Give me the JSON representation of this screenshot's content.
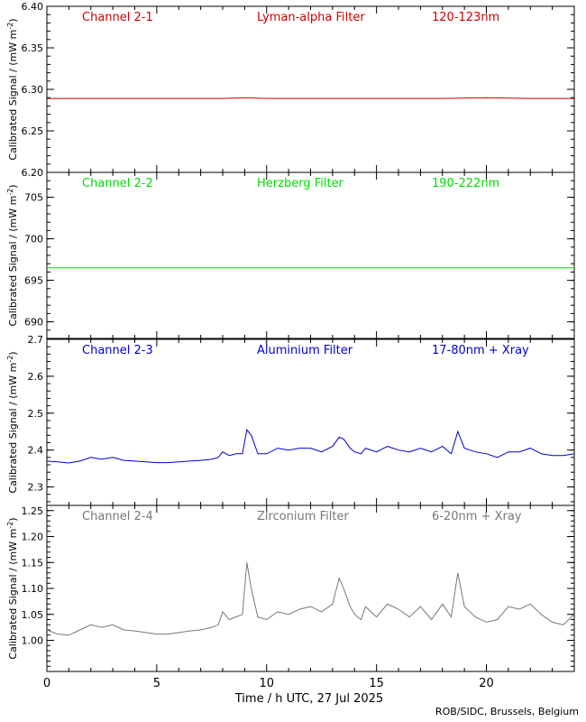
{
  "chart_data": {
    "type": "line",
    "xlabel": "Time / h UTC, 27 Jul 2025",
    "xlim": [
      0,
      24
    ],
    "xticks": [
      0,
      5,
      10,
      15,
      20
    ],
    "credit": "ROB/SIDC, Brussels, Belgium",
    "ylabel_text": "Calibrated Signal / (mW m",
    "ylabel_exp": "-2",
    "ylabel_close": ")",
    "panels": [
      {
        "channel": "Channel 2-1",
        "filter": "Lyman-alpha Filter",
        "band": "120-123nm",
        "color": "#cc0000",
        "ylim": [
          6.2,
          6.4
        ],
        "yticks": [
          "6.20",
          "6.25",
          "6.30",
          "6.35",
          "6.40"
        ],
        "series": [
          {
            "x": [
              0,
              2,
              4,
              6,
              8,
              9,
              10,
              12,
              14,
              16,
              18,
              20,
              22,
              24
            ],
            "y": [
              6.289,
              6.289,
              6.289,
              6.289,
              6.289,
              6.29,
              6.289,
              6.289,
              6.289,
              6.289,
              6.289,
              6.29,
              6.289,
              6.289
            ]
          }
        ]
      },
      {
        "channel": "Channel 2-2",
        "filter": "Herzberg Filter",
        "band": "190-222nm",
        "color": "#00dd00",
        "ylim": [
          688,
          708
        ],
        "yticks": [
          "690",
          "695",
          "700",
          "705"
        ],
        "series": [
          {
            "x": [
              0,
              2,
              4,
              6,
              8,
              10,
              12,
              14,
              16,
              18,
              20,
              22,
              24
            ],
            "y": [
              696.5,
              696.5,
              696.5,
              696.5,
              696.5,
              696.5,
              696.5,
              696.5,
              696.5,
              696.5,
              696.5,
              696.5,
              696.5
            ]
          }
        ]
      },
      {
        "channel": "Channel 2-3",
        "filter": "Aluminium Filter",
        "band": "17-80nm + Xray",
        "color": "#0000cc",
        "ylim": [
          2.25,
          2.7
        ],
        "yticks": [
          "2.3",
          "2.4",
          "2.5",
          "2.6",
          "2.7"
        ],
        "series": [
          {
            "x": [
              0,
              0.5,
              1,
              1.5,
              2,
              2.5,
              3,
              3.5,
              4,
              4.5,
              5,
              5.5,
              6,
              6.5,
              7,
              7.5,
              7.8,
              8,
              8.3,
              8.6,
              8.9,
              9.1,
              9.3,
              9.6,
              10,
              10.5,
              11,
              11.5,
              12,
              12.5,
              13,
              13.3,
              13.5,
              13.8,
              14,
              14.3,
              14.5,
              15,
              15.5,
              16,
              16.5,
              17,
              17.5,
              18,
              18.4,
              18.7,
              19,
              19.5,
              20,
              20.5,
              21,
              21.5,
              22,
              22.5,
              23,
              23.5,
              24
            ],
            "y": [
              2.37,
              2.368,
              2.365,
              2.37,
              2.38,
              2.375,
              2.38,
              2.372,
              2.37,
              2.368,
              2.366,
              2.366,
              2.368,
              2.37,
              2.372,
              2.375,
              2.38,
              2.395,
              2.385,
              2.39,
              2.39,
              2.455,
              2.44,
              2.39,
              2.39,
              2.405,
              2.4,
              2.405,
              2.405,
              2.395,
              2.41,
              2.435,
              2.43,
              2.405,
              2.395,
              2.39,
              2.405,
              2.395,
              2.41,
              2.4,
              2.395,
              2.405,
              2.395,
              2.41,
              2.39,
              2.45,
              2.405,
              2.395,
              2.39,
              2.38,
              2.395,
              2.395,
              2.405,
              2.39,
              2.385,
              2.385,
              2.39
            ]
          }
        ]
      },
      {
        "channel": "Channel 2-4",
        "filter": "Zirconium Filter",
        "band": "6-20nm + Xray",
        "color": "#777777",
        "ylim": [
          0.94,
          1.26
        ],
        "yticks": [
          "1.00",
          "1.05",
          "1.10",
          "1.15",
          "1.20",
          "1.25"
        ],
        "series": [
          {
            "x": [
              0,
              0.5,
              1,
              1.5,
              2,
              2.5,
              3,
              3.5,
              4,
              4.5,
              5,
              5.5,
              6,
              6.5,
              7,
              7.5,
              7.8,
              8,
              8.3,
              8.6,
              8.9,
              9.1,
              9.3,
              9.6,
              10,
              10.5,
              11,
              11.5,
              12,
              12.5,
              13,
              13.3,
              13.5,
              13.8,
              14,
              14.3,
              14.5,
              15,
              15.5,
              16,
              16.5,
              17,
              17.5,
              18,
              18.4,
              18.7,
              19,
              19.5,
              20,
              20.5,
              21,
              21.5,
              22,
              22.5,
              23,
              23.5,
              24
            ],
            "y": [
              1.02,
              1.012,
              1.01,
              1.02,
              1.03,
              1.025,
              1.03,
              1.02,
              1.018,
              1.015,
              1.012,
              1.012,
              1.015,
              1.018,
              1.02,
              1.025,
              1.03,
              1.055,
              1.04,
              1.045,
              1.05,
              1.15,
              1.1,
              1.045,
              1.04,
              1.055,
              1.05,
              1.06,
              1.065,
              1.055,
              1.07,
              1.12,
              1.1,
              1.065,
              1.05,
              1.04,
              1.065,
              1.045,
              1.07,
              1.06,
              1.045,
              1.065,
              1.04,
              1.07,
              1.045,
              1.13,
              1.065,
              1.045,
              1.035,
              1.04,
              1.065,
              1.06,
              1.07,
              1.05,
              1.035,
              1.03,
              1.05
            ]
          }
        ]
      }
    ]
  }
}
